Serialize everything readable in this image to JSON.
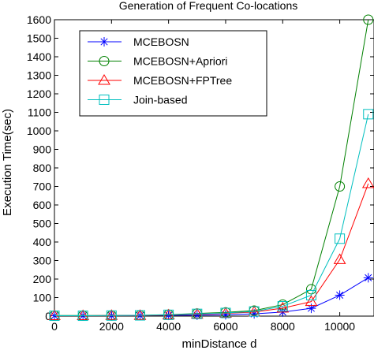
{
  "chart_data": {
    "type": "line",
    "title": "Generation of Frequent Co-locations",
    "xlabel": "minDistance d",
    "ylabel": "Execution Time(sec)",
    "xlim": [
      0,
      11200
    ],
    "ylim": [
      0,
      1600
    ],
    "xticks": [
      0,
      2000,
      4000,
      6000,
      8000,
      10000
    ],
    "yticks": [
      0,
      100,
      200,
      300,
      400,
      500,
      600,
      700,
      800,
      900,
      1000,
      1100,
      1200,
      1300,
      1400,
      1500,
      1600
    ],
    "grid": false,
    "legend_position": "top-left",
    "x": [
      0,
      1000,
      2000,
      3000,
      4000,
      5000,
      6000,
      7000,
      8000,
      9000,
      10000,
      11000
    ],
    "series": [
      {
        "name": "MCEBOSN",
        "color": "#0000ff",
        "marker": "asterisk",
        "values": [
          2,
          2,
          2,
          3,
          4,
          5,
          7,
          12,
          22,
          42,
          113,
          207
        ]
      },
      {
        "name": "MCEBOSN+Apriori",
        "color": "#008000",
        "marker": "circle",
        "values": [
          3,
          3,
          3,
          4,
          8,
          14,
          20,
          30,
          62,
          145,
          700,
          1600
        ]
      },
      {
        "name": "MCEBOSN+FPTree",
        "color": "#ff0000",
        "marker": "triangle",
        "values": [
          2,
          2,
          3,
          3,
          6,
          10,
          15,
          22,
          43,
          78,
          305,
          715
        ]
      },
      {
        "name": "Join-based",
        "color": "#00bfbf",
        "marker": "square",
        "values": [
          2,
          2,
          3,
          4,
          7,
          12,
          17,
          25,
          53,
          113,
          418,
          1090
        ]
      }
    ]
  }
}
